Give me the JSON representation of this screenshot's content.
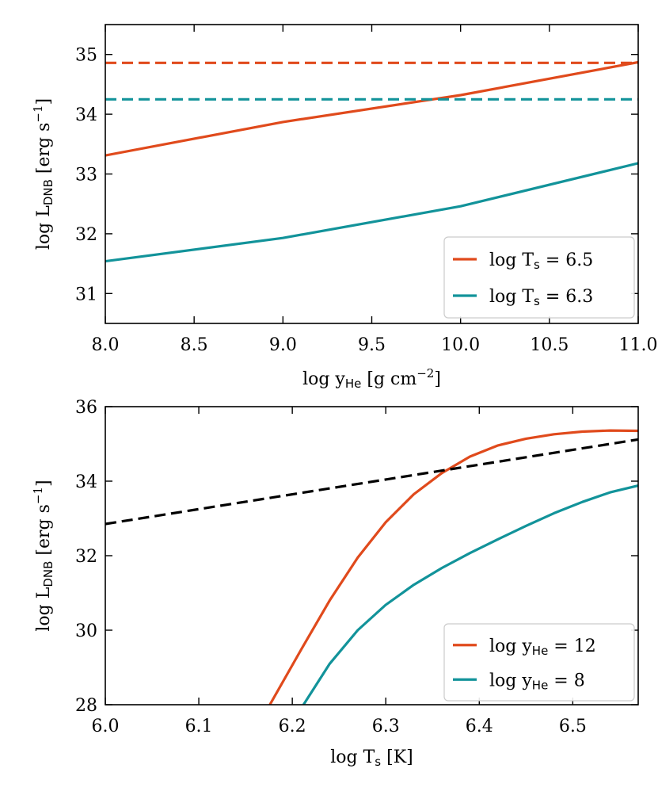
{
  "chart_data": [
    {
      "type": "line",
      "xlabel_main": "log y",
      "xlabel_sub": "He",
      "xlabel_units": " [g cm",
      "xlabel_sup": "−2",
      "xlabel_end": "]",
      "ylabel_main": "log L",
      "ylabel_sub": "DNB",
      "ylabel_units": " [erg s",
      "ylabel_sup": "−1",
      "ylabel_end": "]",
      "xlim": [
        8.0,
        11.0
      ],
      "ylim": [
        30.5,
        35.5
      ],
      "xticks": [
        {
          "v": 8.0,
          "label": "8.0"
        },
        {
          "v": 8.5,
          "label": "8.5"
        },
        {
          "v": 9.0,
          "label": "9.0"
        },
        {
          "v": 9.5,
          "label": "9.5"
        },
        {
          "v": 10.0,
          "label": "10.0"
        },
        {
          "v": 10.5,
          "label": "10.5"
        },
        {
          "v": 11.0,
          "label": "11.0"
        }
      ],
      "yticks": [
        {
          "v": 31,
          "label": "31"
        },
        {
          "v": 32,
          "label": "32"
        },
        {
          "v": 33,
          "label": "33"
        },
        {
          "v": 34,
          "label": "34"
        },
        {
          "v": 35,
          "label": "35"
        }
      ],
      "series": [
        {
          "name": "log T_s = 6.5",
          "legend_main": "log T",
          "legend_sub": "s",
          "legend_rest": " = 6.5",
          "color": "#e04a1c",
          "dash": false,
          "x": [
            8.0,
            9.0,
            10.0,
            11.0
          ],
          "y": [
            33.31,
            33.87,
            34.32,
            34.87
          ]
        },
        {
          "name": "log T_s = 6.3",
          "legend_main": "log T",
          "legend_sub": "s",
          "legend_rest": " = 6.3",
          "color": "#12939a",
          "dash": false,
          "x": [
            8.0,
            9.0,
            10.0,
            11.0
          ],
          "y": [
            31.54,
            31.93,
            32.46,
            33.18
          ]
        },
        {
          "name": "ref-6.5",
          "color": "#e04a1c",
          "dash": true,
          "x": [
            8.0,
            11.0
          ],
          "y": [
            34.86,
            34.86
          ]
        },
        {
          "name": "ref-6.3",
          "color": "#12939a",
          "dash": true,
          "x": [
            8.0,
            11.0
          ],
          "y": [
            34.25,
            34.25
          ]
        }
      ],
      "legend_position": "lower-right"
    },
    {
      "type": "line",
      "xlabel_main": "log T",
      "xlabel_sub": "s",
      "xlabel_units": " [K]",
      "ylabel_main": "log L",
      "ylabel_sub": "DNB",
      "ylabel_units": " [erg s",
      "ylabel_sup": "−1",
      "ylabel_end": "]",
      "xlim": [
        6.0,
        6.57
      ],
      "ylim": [
        28,
        36
      ],
      "xticks": [
        {
          "v": 6.0,
          "label": "6.0"
        },
        {
          "v": 6.1,
          "label": "6.1"
        },
        {
          "v": 6.2,
          "label": "6.2"
        },
        {
          "v": 6.3,
          "label": "6.3"
        },
        {
          "v": 6.4,
          "label": "6.4"
        },
        {
          "v": 6.5,
          "label": "6.5"
        }
      ],
      "yticks": [
        {
          "v": 28,
          "label": "28"
        },
        {
          "v": 30,
          "label": "30"
        },
        {
          "v": 32,
          "label": "32"
        },
        {
          "v": 34,
          "label": "34"
        },
        {
          "v": 36,
          "label": "36"
        }
      ],
      "series": [
        {
          "name": "log y_He = 12",
          "legend_main": "log y",
          "legend_sub": "He",
          "legend_rest": " = 12",
          "color": "#e04a1c",
          "dash": false,
          "x": [
            6.176,
            6.21,
            6.24,
            6.27,
            6.3,
            6.33,
            6.36,
            6.39,
            6.42,
            6.45,
            6.48,
            6.51,
            6.54,
            6.57
          ],
          "y": [
            28.0,
            29.5,
            30.8,
            31.95,
            32.9,
            33.65,
            34.22,
            34.66,
            34.96,
            35.14,
            35.26,
            35.33,
            35.36,
            35.35
          ]
        },
        {
          "name": "log y_He = 8",
          "legend_main": "log y",
          "legend_sub": "He",
          "legend_rest": " = 8",
          "color": "#12939a",
          "dash": false,
          "x": [
            6.212,
            6.24,
            6.27,
            6.3,
            6.33,
            6.36,
            6.39,
            6.42,
            6.45,
            6.48,
            6.51,
            6.54,
            6.57
          ],
          "y": [
            28.0,
            29.1,
            30.0,
            30.68,
            31.22,
            31.67,
            32.07,
            32.44,
            32.8,
            33.14,
            33.44,
            33.7,
            33.88
          ]
        },
        {
          "name": "reference",
          "color": "#000000",
          "dash": true,
          "x": [
            6.0,
            6.57
          ],
          "y": [
            32.85,
            35.12
          ]
        }
      ],
      "legend_position": "lower-right"
    }
  ]
}
